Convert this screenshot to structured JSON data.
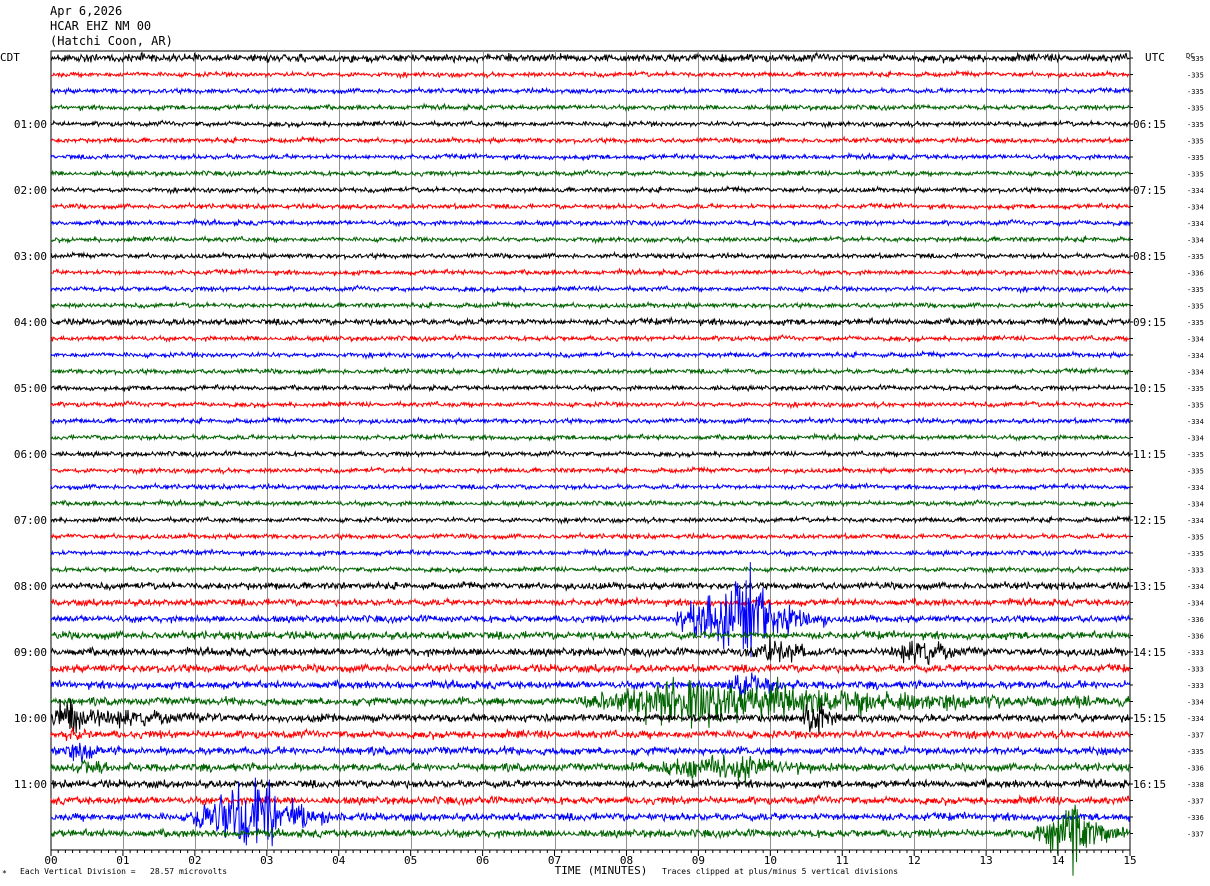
{
  "header": {
    "date": "Apr 6,2026",
    "station": "HCAR EHZ NM 00",
    "location": "(Hatchi Coon, AR)"
  },
  "left_tz": "CDT",
  "right_tz": "UTC",
  "dc_label": "DC",
  "footer": {
    "scale_note": "Each Vertical Division =   28.57 microvolts",
    "clip_note": "Traces clipped at plus/minus 5 vertical divisions",
    "corner_mark": "*"
  },
  "colors": {
    "trace_cycle": [
      "#000000",
      "#ff0000",
      "#0000ff",
      "#006400"
    ],
    "grid": "#909090"
  },
  "chart_data": {
    "type": "line",
    "xlabel": "TIME (MINUTES)",
    "xlim": [
      0,
      15
    ],
    "x_ticks": [
      "00",
      "01",
      "02",
      "03",
      "04",
      "05",
      "06",
      "07",
      "08",
      "09",
      "10",
      "11",
      "12",
      "13",
      "14",
      "15"
    ],
    "trace_minutes": 15,
    "trace_count": 48,
    "left_hour_labels": [
      "01:00",
      "02:00",
      "03:00",
      "04:00",
      "05:00",
      "06:00",
      "07:00",
      "08:00",
      "09:00",
      "10:00",
      "11:00"
    ],
    "right_hour_labels": [
      "06:15",
      "07:15",
      "08:15",
      "09:15",
      "10:15",
      "11:15",
      "12:15",
      "13:15",
      "14:15",
      "15:15",
      "16:15"
    ],
    "dc_offsets": [
      -335,
      -335,
      -335,
      -335,
      -335,
      -335,
      -335,
      -335,
      -334,
      -334,
      -334,
      -334,
      -335,
      -336,
      -335,
      -335,
      -335,
      -334,
      -334,
      -334,
      -335,
      -335,
      -334,
      -334,
      -335,
      -335,
      -334,
      -334,
      -334,
      -335,
      -335,
      -333,
      -334,
      -334,
      -336,
      -336,
      -333,
      -333,
      -333,
      -334,
      -334,
      -337,
      -335,
      -336,
      -338,
      -337,
      -336,
      -337
    ],
    "noise_levels": [
      2.5,
      1.5,
      1.5,
      1.5,
      1.5,
      1.5,
      1.5,
      1.5,
      1.5,
      1.5,
      1.5,
      1.5,
      1.5,
      1.5,
      1.5,
      1.5,
      2,
      1.5,
      1.5,
      1.5,
      1.5,
      1.5,
      1.5,
      1.5,
      1.5,
      1.5,
      1.5,
      1.5,
      1.5,
      1.5,
      1.5,
      1.5,
      2.2,
      2.2,
      2.2,
      2.5,
      2.5,
      2.5,
      2.5,
      2.5,
      2.5,
      2.5,
      2.5,
      2.5,
      2.5,
      2.5,
      2.5,
      2.5
    ],
    "events": [
      {
        "trace": 34,
        "start": 8.6,
        "peak": 9.7,
        "end": 10.8,
        "amp": 40
      },
      {
        "trace": 36,
        "start": 9.5,
        "peak": 10.1,
        "end": 11.2,
        "amp": 8
      },
      {
        "trace": 36,
        "start": 11.5,
        "peak": 12.1,
        "end": 13.0,
        "amp": 10
      },
      {
        "trace": 38,
        "start": 9.4,
        "peak": 9.6,
        "end": 10.4,
        "amp": 14
      },
      {
        "trace": 39,
        "start": 7.3,
        "peak": 8.9,
        "end": 15.0,
        "amp": 20
      },
      {
        "trace": 40,
        "start": 0.0,
        "peak": 0.2,
        "end": 2.5,
        "amp": 14
      },
      {
        "trace": 40,
        "start": 10.4,
        "peak": 10.6,
        "end": 11.0,
        "amp": 22
      },
      {
        "trace": 41,
        "start": 0.1,
        "peak": 0.3,
        "end": 0.6,
        "amp": 5
      },
      {
        "trace": 42,
        "start": 0.0,
        "peak": 0.5,
        "end": 0.9,
        "amp": 6
      },
      {
        "trace": 43,
        "start": 0.2,
        "peak": 0.5,
        "end": 0.8,
        "amp": 6
      },
      {
        "trace": 43,
        "start": 7.9,
        "peak": 9.5,
        "end": 10.9,
        "amp": 10
      },
      {
        "trace": 46,
        "start": 1.9,
        "peak": 2.9,
        "end": 4.1,
        "amp": 40
      },
      {
        "trace": 47,
        "start": 13.6,
        "peak": 14.2,
        "end": 15.0,
        "amp": 30
      }
    ]
  }
}
